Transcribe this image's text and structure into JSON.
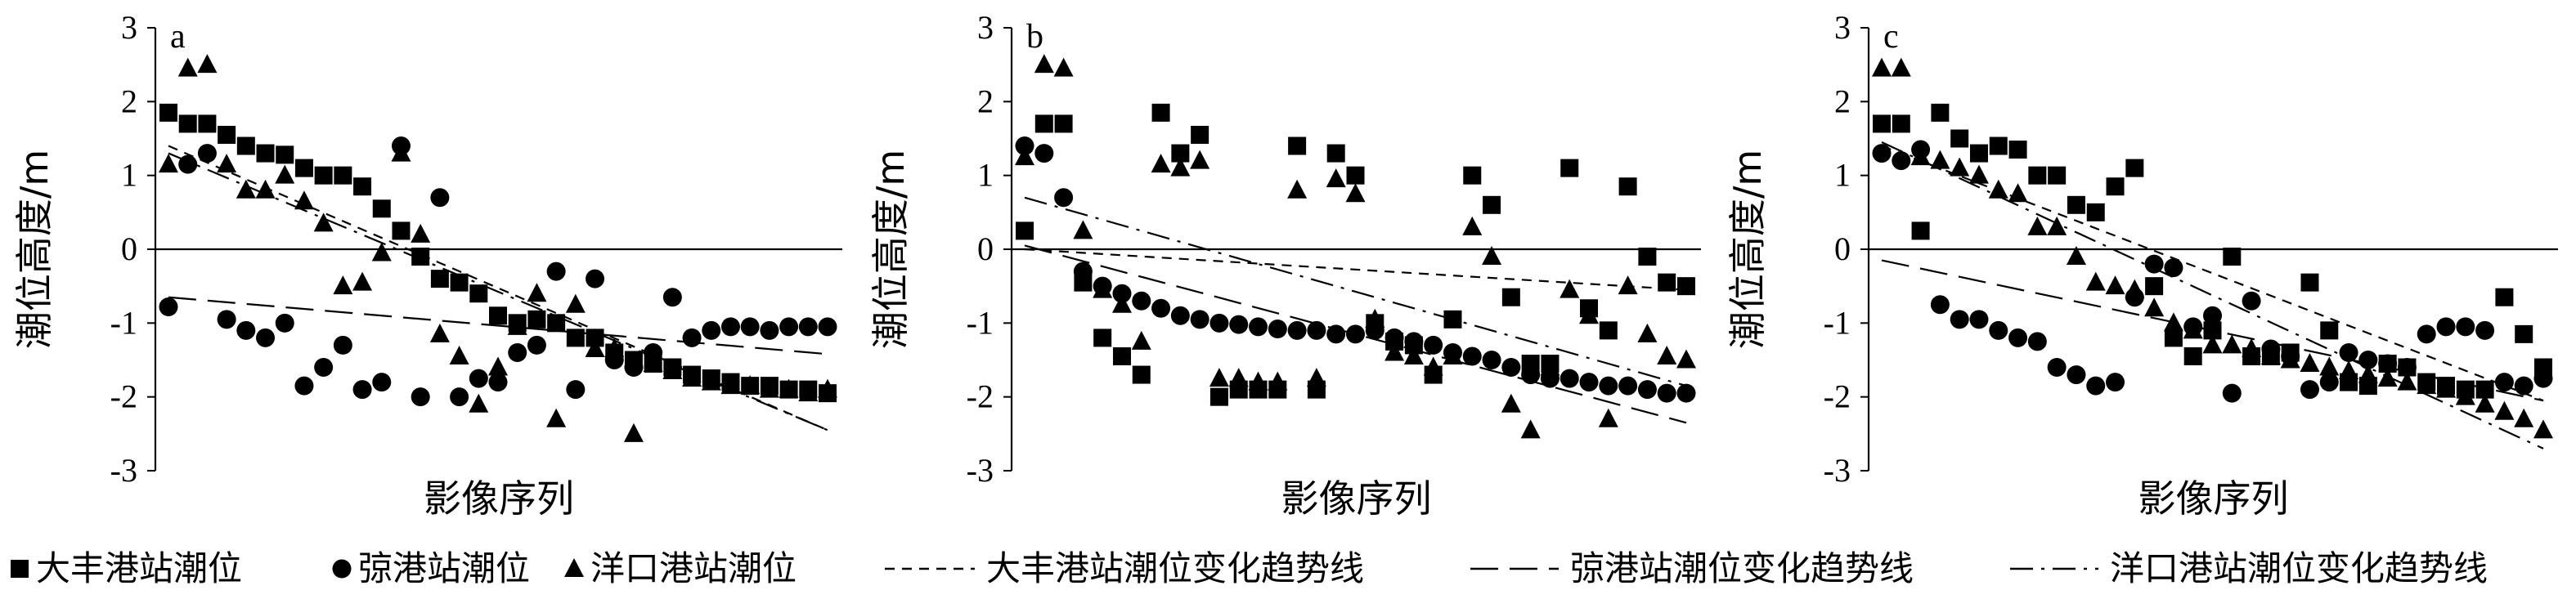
{
  "chart_data": [
    {
      "type": "scatter",
      "panel_label": "a",
      "xlabel": "影像序列",
      "ylabel": "潮位高度/m",
      "ylim": [
        -3,
        3
      ],
      "yticks": [
        3,
        2,
        1,
        0,
        -1,
        -2,
        -3
      ],
      "series": [
        {
          "name": "大丰港站潮位",
          "marker": "square",
          "values": [
            1.85,
            1.7,
            1.7,
            1.55,
            1.4,
            1.3,
            1.28,
            1.1,
            1.0,
            1.0,
            0.85,
            0.55,
            0.25,
            -0.1,
            -0.4,
            -0.45,
            -0.6,
            -0.9,
            -1.0,
            -0.95,
            -1.0,
            -1.2,
            -1.2,
            -1.4,
            -1.5,
            -1.55,
            -1.6,
            -1.7,
            -1.75,
            -1.8,
            -1.85,
            -1.85,
            -1.9,
            -1.9,
            -1.95
          ]
        },
        {
          "name": "弶港站潮位",
          "marker": "circle",
          "values": [
            -0.78,
            1.15,
            1.3,
            -0.95,
            -1.1,
            -1.2,
            -1.0,
            -1.85,
            -1.6,
            -1.3,
            -1.9,
            -1.8,
            1.4,
            -2.0,
            0.7,
            -2.0,
            -1.75,
            -1.8,
            -1.4,
            -1.3,
            -0.3,
            -1.9,
            -0.4,
            -1.5,
            -1.6,
            -1.4,
            -0.65,
            -1.2,
            -1.1,
            -1.05,
            -1.05,
            -1.1,
            -1.05,
            -1.05,
            -1.05
          ]
        },
        {
          "name": "洋口港站潮位",
          "marker": "triangle",
          "values": [
            1.15,
            2.45,
            2.5,
            1.15,
            0.8,
            0.8,
            1.0,
            0.65,
            0.35,
            -0.5,
            -0.45,
            -0.05,
            1.3,
            0.2,
            -1.15,
            -1.45,
            -2.1,
            -1.6,
            -1.05,
            -0.6,
            -2.3,
            -0.75,
            -1.35,
            -1.35,
            -2.5,
            -1.55,
            -1.65,
            -1.75,
            -1.8,
            -1.85,
            -1.85,
            -1.9,
            -1.9,
            -1.95,
            -1.9
          ]
        }
      ],
      "trendlines": [
        {
          "name": "大丰港站潮位变化趋势线",
          "style": "dashed",
          "y_start": 1.4,
          "y_end": -2.45
        },
        {
          "name": "弶港站潮位变化趋势线",
          "style": "long-dash",
          "y_start": -0.65,
          "y_end": -1.42
        },
        {
          "name": "洋口港站潮位变化趋势线",
          "style": "dash-dot",
          "y_start": 1.3,
          "y_end": -2.45
        }
      ]
    },
    {
      "type": "scatter",
      "panel_label": "b",
      "xlabel": "影像序列",
      "ylabel": "潮位高度/m",
      "ylim": [
        -3,
        3
      ],
      "yticks": [
        3,
        2,
        1,
        0,
        -1,
        -2,
        -3
      ],
      "series": [
        {
          "name": "大丰港站潮位",
          "marker": "square",
          "values": [
            0.25,
            1.7,
            1.7,
            -0.45,
            -1.2,
            -1.45,
            -1.7,
            1.85,
            1.3,
            1.55,
            -2.0,
            -1.9,
            -1.9,
            -1.9,
            1.4,
            -1.9,
            1.3,
            1.0,
            -1.0,
            -1.25,
            -1.3,
            -1.7,
            -0.95,
            1.0,
            0.6,
            -0.65,
            -1.55,
            -1.55,
            1.1,
            -0.8,
            -1.1,
            0.85,
            -0.1,
            -0.45,
            -0.5
          ]
        },
        {
          "name": "弶港站潮位",
          "marker": "circle",
          "values": [
            1.4,
            1.3,
            0.7,
            -0.3,
            -0.5,
            -0.6,
            -0.7,
            -0.8,
            -0.9,
            -0.95,
            -1.0,
            -1.02,
            -1.05,
            -1.08,
            -1.1,
            -1.1,
            -1.15,
            -1.15,
            -1.1,
            -1.2,
            -1.25,
            -1.3,
            -1.4,
            -1.45,
            -1.5,
            -1.6,
            -1.7,
            -1.75,
            -1.75,
            -1.8,
            -1.85,
            -1.85,
            -1.9,
            -1.95,
            -1.95
          ]
        },
        {
          "name": "洋口港站潮位",
          "marker": "triangle",
          "values": [
            1.25,
            2.5,
            2.45,
            0.25,
            -0.55,
            -0.75,
            -1.25,
            1.15,
            1.1,
            1.2,
            -1.75,
            -1.75,
            -1.8,
            -1.8,
            0.8,
            -1.75,
            0.95,
            0.75,
            -0.95,
            -1.4,
            -1.45,
            -1.6,
            -1.45,
            0.3,
            -0.1,
            -2.1,
            -2.45,
            -1.6,
            -0.55,
            -0.9,
            -2.3,
            -0.5,
            -1.15,
            -1.45,
            -1.5
          ]
        }
      ],
      "trendlines": [
        {
          "name": "大丰港站潮位变化趋势线",
          "style": "dashed",
          "y_start": 0.0,
          "y_end": -0.55
        },
        {
          "name": "弶港站潮位变化趋势线",
          "style": "long-dash",
          "y_start": 0.05,
          "y_end": -2.35
        },
        {
          "name": "洋口港站潮位变化趋势线",
          "style": "dash-dot",
          "y_start": 0.7,
          "y_end": -1.85
        }
      ]
    },
    {
      "type": "scatter",
      "panel_label": "c",
      "xlabel": "影像序列",
      "ylabel": "潮位高度/m",
      "ylim": [
        -3,
        3
      ],
      "yticks": [
        3,
        2,
        1,
        0,
        -1,
        -2,
        -3
      ],
      "series": [
        {
          "name": "大丰港站潮位",
          "marker": "square",
          "values": [
            1.7,
            1.7,
            0.25,
            1.85,
            1.5,
            1.3,
            1.4,
            1.35,
            1.0,
            1.0,
            0.6,
            0.5,
            0.85,
            1.1,
            -0.5,
            -1.2,
            -1.45,
            -1.1,
            -0.1,
            -1.45,
            -1.45,
            -1.4,
            -0.45,
            -1.1,
            -1.8,
            -1.85,
            -1.55,
            -1.6,
            -1.8,
            -1.85,
            -1.9,
            -1.9,
            -0.65,
            -1.15,
            -1.6
          ]
        },
        {
          "name": "弶港站潮位",
          "marker": "circle",
          "values": [
            1.3,
            1.2,
            1.35,
            -0.75,
            -0.95,
            -0.95,
            -1.1,
            -1.2,
            -1.25,
            -1.6,
            -1.7,
            -1.85,
            -1.8,
            -0.65,
            -0.2,
            -0.25,
            -1.05,
            -0.9,
            -1.95,
            -0.7,
            -1.35,
            -1.45,
            -1.9,
            -1.8,
            -1.4,
            -1.5,
            -1.55,
            -1.6,
            -1.15,
            -1.05,
            -1.05,
            -1.1,
            -1.8,
            -1.85,
            -1.75
          ]
        },
        {
          "name": "洋口港站潮位",
          "marker": "triangle",
          "values": [
            2.45,
            2.45,
            1.25,
            1.2,
            1.1,
            1.0,
            0.8,
            0.75,
            0.3,
            0.3,
            -0.1,
            -0.45,
            -0.5,
            -0.55,
            -0.8,
            -1.0,
            -1.1,
            -1.3,
            -1.3,
            -1.35,
            -1.45,
            -1.5,
            -1.55,
            -1.6,
            -1.65,
            -1.7,
            -1.75,
            -1.8,
            -1.85,
            -1.9,
            -2.0,
            -2.1,
            -2.2,
            -2.3,
            -2.45
          ]
        }
      ],
      "trendlines": [
        {
          "name": "大丰港站潮位变化趋势线",
          "style": "dashed",
          "y_start": 1.4,
          "y_end": -2.05
        },
        {
          "name": "弶港站潮位变化趋势线",
          "style": "long-dash",
          "y_start": -0.15,
          "y_end": -2.05
        },
        {
          "name": "洋口港站潮位变化趋势线",
          "style": "dash-dot",
          "y_start": 1.45,
          "y_end": -2.7
        }
      ]
    }
  ],
  "legend": [
    {
      "marker": "square",
      "label": "大丰港站潮位"
    },
    {
      "marker": "circle",
      "label": "弶港站潮位"
    },
    {
      "marker": "triangle",
      "label": "洋口港站潮位"
    },
    {
      "marker": "dashed",
      "label": "大丰港站潮位变化趋势线"
    },
    {
      "marker": "long-dash",
      "label": "弶港站潮位变化趋势线"
    },
    {
      "marker": "dash-dot",
      "label": "洋口港站潮位变化趋势线"
    }
  ]
}
